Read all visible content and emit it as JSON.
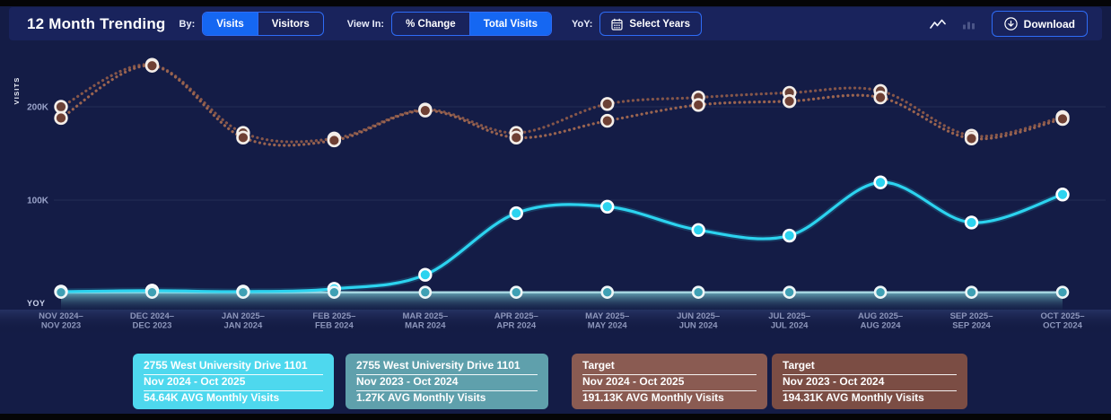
{
  "header": {
    "title": "12 Month Trending",
    "by": {
      "label": "By:",
      "options": [
        "Visits",
        "Visitors"
      ],
      "active": "Visits"
    },
    "view_in": {
      "label": "View In:",
      "options": [
        "% Change",
        "Total Visits"
      ],
      "active": "Total Visits"
    },
    "yoy": {
      "label": "YoY:",
      "button_label": "Select Years",
      "icon": "calendar-icon"
    },
    "chart_type_icons": [
      {
        "name": "line-chart-icon",
        "active": true
      },
      {
        "name": "bar-chart-icon",
        "active": false
      }
    ],
    "download": {
      "label": "Download",
      "icon": "download-circle-icon"
    }
  },
  "axis": {
    "y_label": "VISITS",
    "y_ticks": [
      {
        "label": "200K",
        "value": 200000
      },
      {
        "label": "100K",
        "value": 100000
      }
    ],
    "yoy_row_label": "YOY"
  },
  "chart_data": {
    "type": "line",
    "title": "12 Month Trending",
    "ylabel": "VISITS",
    "ylim": [
      0,
      260000
    ],
    "grid": "faint-horizontal",
    "legend_position": "bottom",
    "categories": [
      [
        "NOV 2024–",
        "NOV 2023"
      ],
      [
        "DEC 2024–",
        "DEC 2023"
      ],
      [
        "JAN 2025–",
        "JAN 2024"
      ],
      [
        "FEB 2025–",
        "FEB 2024"
      ],
      [
        "MAR 2025–",
        "MAR 2024"
      ],
      [
        "APR 2025–",
        "APR 2024"
      ],
      [
        "MAY 2025–",
        "MAY 2024"
      ],
      [
        "JUN 2025–",
        "JUN 2024"
      ],
      [
        "JUL 2025–",
        "JUL 2024"
      ],
      [
        "AUG 2025–",
        "AUG 2024"
      ],
      [
        "SEP 2025–",
        "SEP 2024"
      ],
      [
        "OCT 2025–",
        "OCT 2024"
      ]
    ],
    "series": [
      {
        "name": "2755 West University Drive 1101 (Nov 2024 - Oct 2025)",
        "style": "solid",
        "color": "#2cd3ef",
        "values": [
          2000,
          3000,
          2000,
          5000,
          20000,
          86000,
          93000,
          68000,
          62000,
          119000,
          76000,
          106000
        ]
      },
      {
        "name": "2755 West University Drive 1101 (Nov 2023 - Oct 2024)",
        "style": "solid-area",
        "color": "#7fc0cd",
        "values": [
          1300,
          1300,
          1300,
          1300,
          1300,
          1300,
          1300,
          1300,
          1300,
          1300,
          1300,
          1300
        ]
      },
      {
        "name": "Target (Nov 2024 - Oct 2025)",
        "style": "dotted",
        "color": "#9a6450",
        "values": [
          188000,
          244000,
          167000,
          164000,
          196000,
          167000,
          185000,
          202000,
          206000,
          210000,
          166000,
          187000
        ]
      },
      {
        "name": "Target (Nov 2023 - Oct 2024)",
        "style": "dotted",
        "color": "#85564a",
        "values": [
          200000,
          245000,
          172000,
          166000,
          197000,
          172000,
          203000,
          210000,
          215000,
          217000,
          169000,
          189000
        ]
      }
    ],
    "legend": [
      {
        "title": "2755 West University Drive 1101",
        "period": "Nov 2024 - Oct 2025",
        "avg": "54.64K AVG Monthly Visits",
        "color": "#4ed8ee"
      },
      {
        "title": "2755 West University Drive 1101",
        "period": "Nov 2023 - Oct 2024",
        "avg": "1.27K AVG Monthly Visits",
        "color": "#5fa0ac"
      },
      {
        "title": "Target",
        "period": "Nov 2024 - Oct 2025",
        "avg": "191.13K AVG Monthly Visits",
        "color": "#8a5b52"
      },
      {
        "title": "Target",
        "period": "Nov 2023 - Oct 2024",
        "avg": "194.31K AVG Monthly Visits",
        "color": "#7b4d44"
      }
    ]
  }
}
